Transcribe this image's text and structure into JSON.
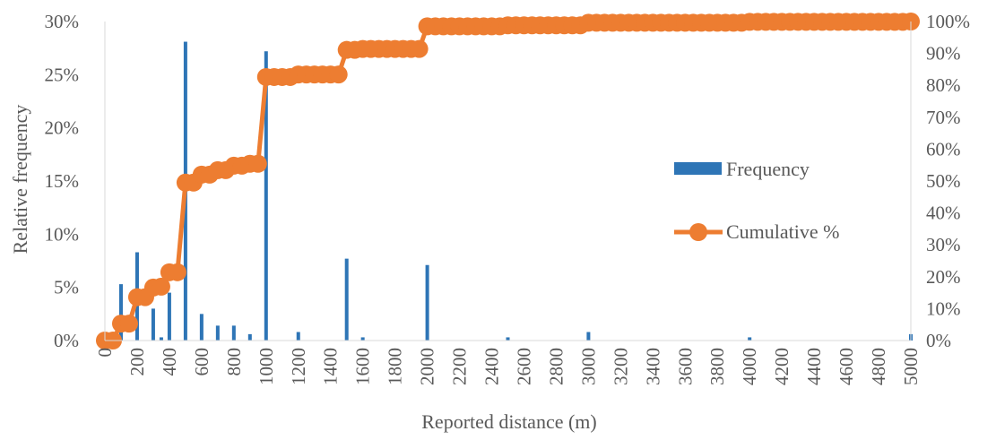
{
  "chart_data": {
    "type": "bar+line",
    "xlabel": "Reported distance (m)",
    "ylabel": "Relative frequency",
    "x_tick_labels": [
      "0",
      "200",
      "400",
      "600",
      "800",
      "1000",
      "1200",
      "1400",
      "1600",
      "1800",
      "2000",
      "2200",
      "2400",
      "2600",
      "2800",
      "3000",
      "3200",
      "3400",
      "3600",
      "3800",
      "4000",
      "4200",
      "4400",
      "4600",
      "4800",
      "5000"
    ],
    "y_left_tick_labels": [
      "0%",
      "5%",
      "10%",
      "15%",
      "20%",
      "25%",
      "30%"
    ],
    "y_right_tick_labels": [
      "0%",
      "10%",
      "20%",
      "30%",
      "40%",
      "50%",
      "60%",
      "70%",
      "80%",
      "90%",
      "100%"
    ],
    "ylim_left": [
      0,
      0.3
    ],
    "ylim_right": [
      0,
      1.0
    ],
    "xlim": [
      0,
      5000
    ],
    "x_step": 50,
    "grid": false,
    "legend_position": "right-middle",
    "colors": {
      "bar": "#2E75B6",
      "line": "#ED7D31",
      "axis": "#D9D9D9",
      "text": "#595959"
    },
    "series": [
      {
        "name": "Frequency",
        "kind": "bar",
        "axis": "left",
        "x": [
          100,
          200,
          300,
          350,
          400,
          500,
          600,
          700,
          800,
          900,
          1000,
          1200,
          1500,
          1600,
          2000,
          2500,
          3000,
          4000,
          5000
        ],
        "values": [
          0.053,
          0.083,
          0.03,
          0.003,
          0.045,
          0.281,
          0.025,
          0.014,
          0.014,
          0.006,
          0.272,
          0.008,
          0.077,
          0.003,
          0.071,
          0.003,
          0.008,
          0.003,
          0.006
        ]
      },
      {
        "name": "Cumulative %",
        "kind": "line",
        "axis": "right",
        "x": [
          0,
          50,
          100,
          150,
          200,
          250,
          300,
          350,
          400,
          450,
          500,
          550,
          600,
          650,
          700,
          750,
          800,
          850,
          900,
          950,
          1000,
          1050,
          1100,
          1150,
          1200,
          1250,
          1300,
          1350,
          1400,
          1450,
          1500,
          1550,
          1600,
          1650,
          1700,
          1750,
          1800,
          1850,
          1900,
          1950,
          2000,
          2050,
          2100,
          2150,
          2200,
          2250,
          2300,
          2350,
          2400,
          2450,
          2500,
          2550,
          2600,
          2650,
          2700,
          2750,
          2800,
          2850,
          2900,
          2950,
          3000,
          3050,
          3100,
          3150,
          3200,
          3250,
          3300,
          3350,
          3400,
          3450,
          3500,
          3550,
          3600,
          3650,
          3700,
          3750,
          3800,
          3850,
          3900,
          3950,
          4000,
          4050,
          4100,
          4150,
          4200,
          4250,
          4300,
          4350,
          4400,
          4450,
          4500,
          4550,
          4600,
          4650,
          4700,
          4750,
          4800,
          4850,
          4900,
          4950,
          5000
        ],
        "values": [
          0,
          0,
          0.053,
          0.053,
          0.136,
          0.136,
          0.166,
          0.169,
          0.214,
          0.214,
          0.495,
          0.495,
          0.52,
          0.52,
          0.534,
          0.534,
          0.548,
          0.548,
          0.554,
          0.554,
          0.826,
          0.826,
          0.826,
          0.826,
          0.834,
          0.834,
          0.834,
          0.834,
          0.834,
          0.834,
          0.911,
          0.911,
          0.914,
          0.914,
          0.914,
          0.914,
          0.914,
          0.914,
          0.914,
          0.914,
          0.985,
          0.985,
          0.985,
          0.985,
          0.985,
          0.985,
          0.985,
          0.985,
          0.985,
          0.985,
          0.988,
          0.988,
          0.988,
          0.988,
          0.988,
          0.988,
          0.988,
          0.988,
          0.988,
          0.988,
          0.996,
          0.996,
          0.996,
          0.996,
          0.996,
          0.996,
          0.996,
          0.996,
          0.996,
          0.996,
          0.996,
          0.996,
          0.996,
          0.996,
          0.996,
          0.996,
          0.996,
          0.996,
          0.996,
          0.996,
          0.999,
          0.999,
          0.999,
          0.999,
          0.999,
          0.999,
          0.999,
          0.999,
          0.999,
          0.999,
          0.999,
          0.999,
          0.999,
          0.999,
          0.999,
          0.999,
          0.999,
          0.999,
          0.999,
          0.999,
          1.0
        ]
      }
    ]
  }
}
